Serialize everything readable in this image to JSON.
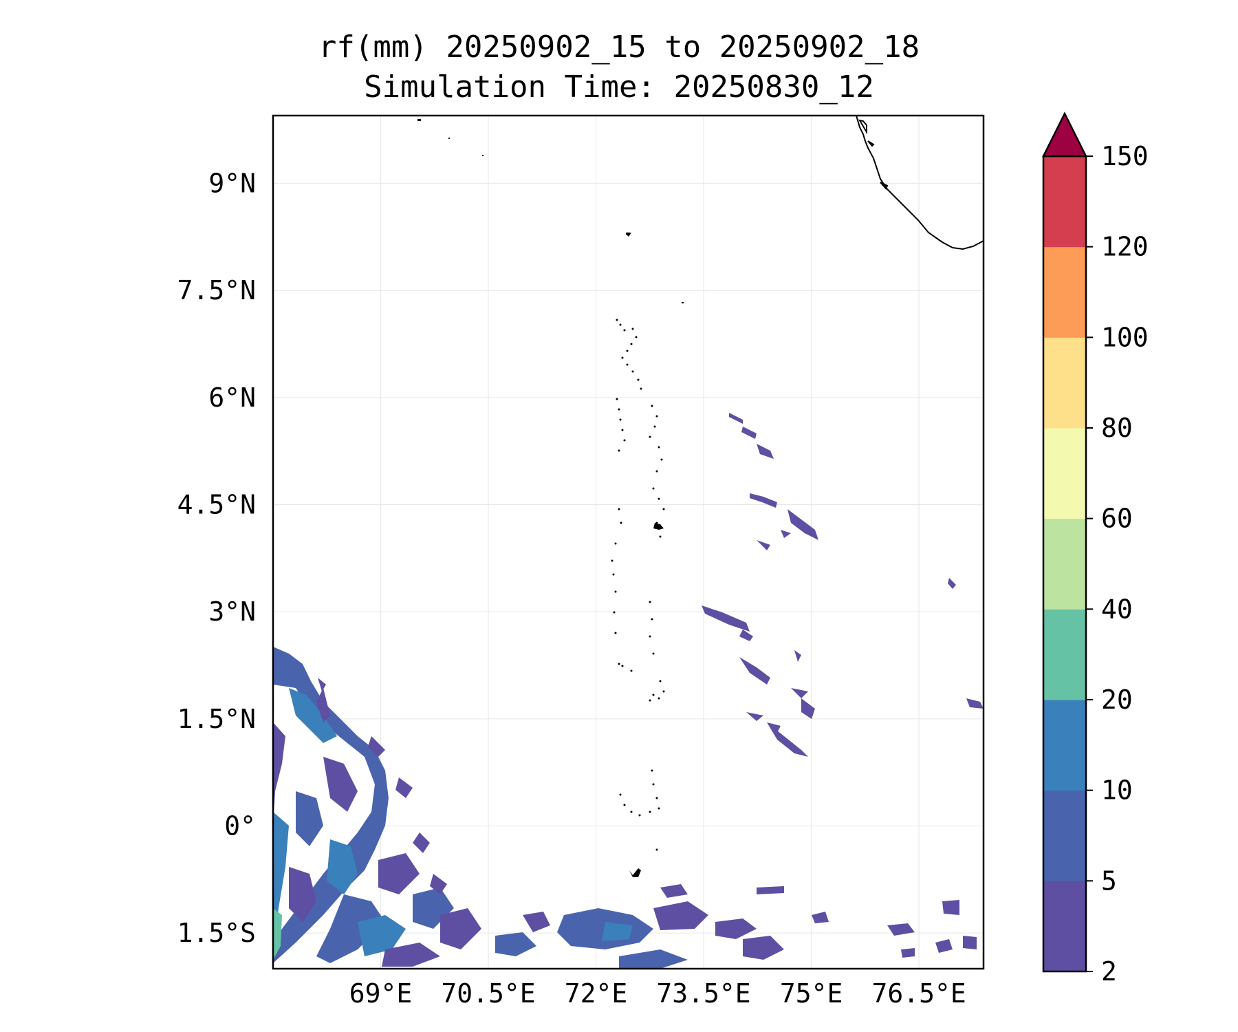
{
  "title": {
    "line1": "rf(mm) 20250902_15 to 20250902_18",
    "line2": "Simulation Time: 20250830_12"
  },
  "map": {
    "lon_range": [
      67.5,
      77.4
    ],
    "lat_range": [
      -2.0,
      9.95
    ],
    "lon_ticks": [
      69,
      70.5,
      72,
      73.5,
      75,
      76.5
    ],
    "lon_tick_labels": [
      "69°E",
      "70.5°E",
      "72°E",
      "73.5°E",
      "75°E",
      "76.5°E"
    ],
    "lat_ticks": [
      9,
      7.5,
      6,
      4.5,
      3,
      1.5,
      0,
      -1.5
    ],
    "lat_tick_labels": [
      "9°N",
      "7.5°N",
      "6°N",
      "4.5°N",
      "3°N",
      "1.5°N",
      "0°",
      "1.5°S"
    ],
    "gridlines": true
  },
  "colorbar": {
    "levels": [
      "2",
      "5",
      "10",
      "20",
      "40",
      "60",
      "80",
      "100",
      "120",
      "150"
    ],
    "colors": [
      "#5e4fa2",
      "#4a63ad",
      "#3a80bb",
      "#66c2a5",
      "#bde3a0",
      "#f4f9b0",
      "#fee08b",
      "#fd9c56",
      "#d53e4f"
    ],
    "extend_color": "#9e0142",
    "extend": "max"
  }
}
